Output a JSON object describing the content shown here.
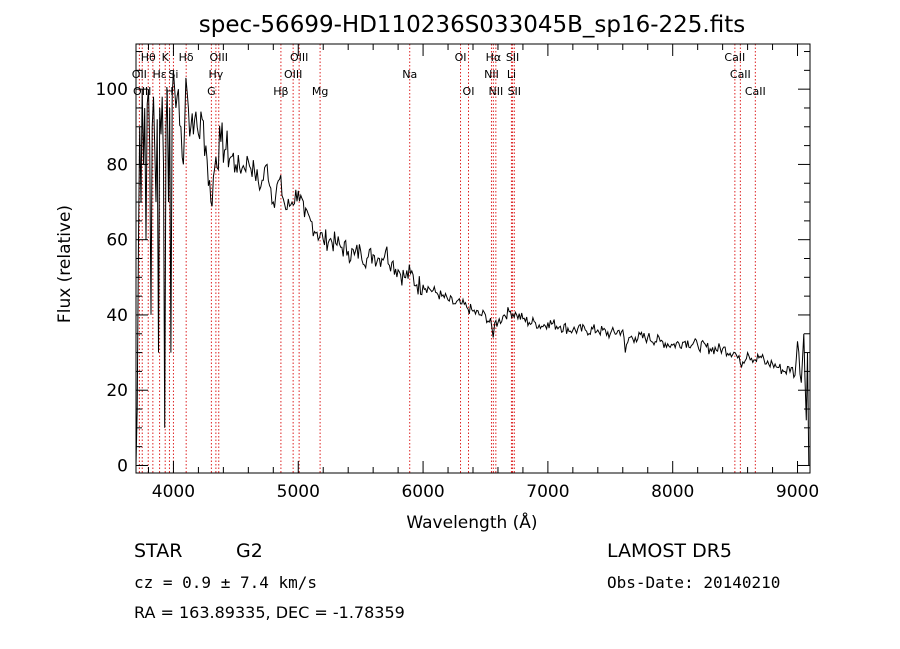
{
  "chart_data": {
    "type": "line",
    "title": "spec-56699-HD110236S033045B_sp16-225.fits",
    "xlabel": "Wavelength (Å)",
    "ylabel": "Flux (relative)",
    "xlim": [
      3700,
      9100
    ],
    "ylim": [
      -2,
      112
    ],
    "x_ticks": [
      4000,
      5000,
      6000,
      7000,
      8000,
      9000
    ],
    "y_ticks": [
      0,
      20,
      40,
      60,
      80,
      100
    ],
    "grid": false,
    "legend": "none",
    "series": [
      {
        "x": [
          3700,
          3710,
          3720,
          3730,
          3740,
          3750,
          3760,
          3770,
          3780,
          3790,
          3800,
          3810,
          3820,
          3830,
          3840,
          3850,
          3860,
          3870,
          3880,
          3890,
          3900,
          3910,
          3920,
          3930,
          3940,
          3950,
          3960,
          3970,
          3980,
          3990,
          4000,
          4020,
          4040,
          4060,
          4080,
          4100,
          4120,
          4140,
          4160,
          4180,
          4200,
          4230,
          4260,
          4300,
          4340,
          4380,
          4420,
          4460,
          4500,
          4550,
          4600,
          4650,
          4700,
          4750,
          4800,
          4850,
          4900,
          4950,
          5000,
          5050,
          5100,
          5150,
          5200,
          5250,
          5300,
          5350,
          5400,
          5450,
          5500,
          5550,
          5600,
          5650,
          5700,
          5750,
          5800,
          5850,
          5900,
          5950,
          6000,
          6050,
          6100,
          6150,
          6200,
          6250,
          6300,
          6350,
          6400,
          6450,
          6500,
          6550,
          6562,
          6575,
          6600,
          6650,
          6700,
          6750,
          6800,
          6850,
          6900,
          6950,
          7000,
          7100,
          7200,
          7300,
          7400,
          7500,
          7600,
          7620,
          7650,
          7700,
          7800,
          7900,
          8000,
          8100,
          8200,
          8300,
          8400,
          8500,
          8542,
          8600,
          8662,
          8700,
          8750,
          8800,
          8850,
          8900,
          8950,
          8980,
          9000,
          9030,
          9050,
          9070,
          9080,
          9090
        ],
        "y": [
          0,
          15,
          60,
          90,
          70,
          100,
          80,
          95,
          60,
          96,
          100,
          85,
          40,
          90,
          98,
          85,
          70,
          92,
          30,
          95,
          88,
          98,
          80,
          10,
          90,
          100,
          70,
          95,
          30,
          98,
          105,
          95,
          100,
          90,
          80,
          103,
          95,
          90,
          88,
          94,
          88,
          92,
          85,
          70,
          82,
          86,
          84,
          82,
          80,
          79,
          81,
          78,
          74,
          80,
          70,
          76,
          68,
          70,
          73,
          66,
          65,
          62,
          60,
          60,
          59,
          58,
          57,
          56,
          57,
          55,
          56,
          55,
          57,
          54,
          52,
          50,
          51,
          48,
          48,
          47,
          46,
          45,
          44,
          43,
          43,
          42,
          41,
          40,
          40,
          37,
          34,
          38,
          38,
          40,
          41,
          40,
          39,
          38,
          38,
          37,
          38,
          37,
          36,
          36,
          36,
          35,
          36,
          30,
          34,
          34,
          34,
          33,
          32,
          33,
          32,
          31,
          31,
          30,
          27,
          30,
          28,
          29,
          27,
          27,
          26,
          25,
          26,
          24,
          33,
          22,
          35,
          12,
          30,
          0
        ]
      }
    ],
    "annotations": [
      {
        "label": "Hθ",
        "x": 3798,
        "row": 1
      },
      {
        "label": "K",
        "x": 3934,
        "row": 1
      },
      {
        "label": "Hδ",
        "x": 4102,
        "row": 1
      },
      {
        "label": "OIII",
        "x": 4363,
        "row": 1
      },
      {
        "label": "OIII",
        "x": 5007,
        "row": 1
      },
      {
        "label": "OI",
        "x": 6300,
        "row": 1
      },
      {
        "label": "Hα",
        "x": 6563,
        "row": 1
      },
      {
        "label": "SII",
        "x": 6717,
        "row": 1
      },
      {
        "label": "CaII",
        "x": 8498,
        "row": 1
      },
      {
        "label": "OII",
        "x": 3727,
        "row": 2
      },
      {
        "label": "Hε",
        "x": 3889,
        "row": 2
      },
      {
        "label": "Si",
        "x": 4000,
        "row": 2
      },
      {
        "label": "Hγ",
        "x": 4340,
        "row": 2
      },
      {
        "label": "OIII",
        "x": 4959,
        "row": 2
      },
      {
        "label": "Na",
        "x": 5893,
        "row": 2
      },
      {
        "label": "NII",
        "x": 6548,
        "row": 2
      },
      {
        "label": "Li",
        "x": 6708,
        "row": 2
      },
      {
        "label": "CaII",
        "x": 8542,
        "row": 2
      },
      {
        "label": "OIII",
        "x": 3750,
        "row": 3
      },
      {
        "label": "H",
        "x": 3968,
        "row": 3
      },
      {
        "label": "G",
        "x": 4304,
        "row": 3
      },
      {
        "label": "Hβ",
        "x": 4861,
        "row": 3
      },
      {
        "label": "Mg",
        "x": 5175,
        "row": 3
      },
      {
        "label": "OI",
        "x": 6364,
        "row": 3
      },
      {
        "label": "NII",
        "x": 6583,
        "row": 3
      },
      {
        "label": "SII",
        "x": 6731,
        "row": 3
      },
      {
        "label": "CaII",
        "x": 8662,
        "row": 3
      }
    ],
    "line_markers": [
      3727,
      3750,
      3798,
      3835,
      3889,
      3934,
      3968,
      4000,
      4102,
      4304,
      4340,
      4363,
      4861,
      4959,
      5007,
      5175,
      5893,
      6300,
      6364,
      6548,
      6563,
      6583,
      6708,
      6717,
      6731,
      8498,
      8542,
      8662
    ]
  },
  "info": {
    "object_class": "STAR",
    "subclass": "G2",
    "survey": "LAMOST DR5",
    "cz": "cz = 0.9 ± 7.4 km/s",
    "obs_date": "Obs-Date: 20140210",
    "coords": "RA = 163.89335, DEC =  -1.78359"
  }
}
